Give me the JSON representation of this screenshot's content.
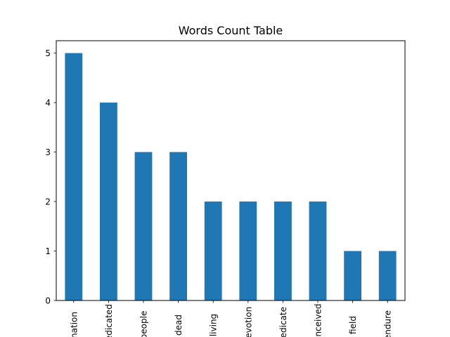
{
  "chart_data": {
    "type": "bar",
    "title": "Words Count Table",
    "xlabel": "",
    "ylabel": "",
    "categories": [
      "nation",
      "dedicated",
      "people",
      "dead",
      "living",
      "devotion",
      "dedicate",
      "conceived",
      "field",
      "endure"
    ],
    "values": [
      5,
      4,
      3,
      3,
      2,
      2,
      2,
      2,
      1,
      1
    ],
    "ylim": [
      0,
      5.25
    ],
    "yticks": [
      0,
      1,
      2,
      3,
      4,
      5
    ],
    "grid": false,
    "legend": "none",
    "bar_color": "#1f77b4"
  }
}
